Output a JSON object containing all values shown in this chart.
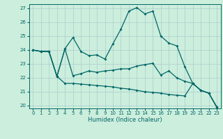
{
  "title": "",
  "xlabel": "Humidex (Indice chaleur)",
  "background_color": "#cceedd",
  "grid_color": "#aacccc",
  "line_color": "#006666",
  "xlim": [
    -0.5,
    23.5
  ],
  "ylim": [
    19.8,
    27.3
  ],
  "yticks": [
    20,
    21,
    22,
    23,
    24,
    25,
    26,
    27
  ],
  "xticks": [
    0,
    1,
    2,
    3,
    4,
    5,
    6,
    7,
    8,
    9,
    10,
    11,
    12,
    13,
    14,
    15,
    16,
    17,
    18,
    19,
    20,
    21,
    22,
    23
  ],
  "line1_x": [
    0,
    1,
    2,
    3,
    4,
    5,
    6,
    7,
    8,
    9,
    10,
    11,
    12,
    13,
    14,
    15,
    16,
    17,
    18,
    19,
    20,
    21,
    22,
    23
  ],
  "line1_y": [
    24.0,
    23.9,
    23.9,
    22.1,
    24.1,
    24.9,
    23.9,
    23.6,
    23.65,
    23.35,
    24.45,
    25.5,
    26.8,
    27.05,
    26.6,
    26.8,
    25.0,
    24.5,
    24.3,
    22.8,
    21.6,
    21.1,
    20.9,
    19.9
  ],
  "line2_x": [
    0,
    1,
    2,
    3,
    4,
    5,
    6,
    7,
    8,
    9,
    10,
    11,
    12,
    13,
    14,
    15,
    16,
    17,
    18,
    19,
    20,
    21,
    22,
    23
  ],
  "line2_y": [
    24.0,
    23.9,
    23.9,
    22.1,
    24.1,
    22.15,
    22.3,
    22.5,
    22.4,
    22.5,
    22.55,
    22.65,
    22.65,
    22.85,
    22.95,
    23.05,
    22.2,
    22.5,
    22.0,
    21.75,
    21.6,
    21.1,
    20.9,
    19.9
  ],
  "line3_x": [
    0,
    1,
    2,
    3,
    4,
    5,
    6,
    7,
    8,
    9,
    10,
    11,
    12,
    13,
    14,
    15,
    16,
    17,
    18,
    19,
    20,
    21,
    22,
    23
  ],
  "line3_y": [
    24.0,
    23.9,
    23.9,
    22.1,
    21.6,
    21.6,
    21.55,
    21.5,
    21.45,
    21.4,
    21.35,
    21.25,
    21.2,
    21.1,
    21.0,
    20.95,
    20.9,
    20.8,
    20.75,
    20.7,
    21.6,
    21.1,
    20.9,
    19.9
  ]
}
